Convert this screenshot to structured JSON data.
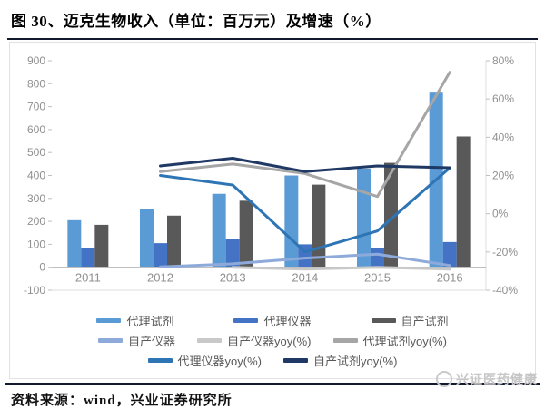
{
  "title": "图 30、迈克生物收入（单位：百万元）及增速（%）",
  "source_line": "资料来源：wind，兴业证券研究所",
  "watermark": "兴证医药健康",
  "colors": {
    "rule": "#141a2e",
    "axis_text": "#8f8f8f",
    "axis_line": "#bfbfbf",
    "plot_border": "#dcdcdc",
    "watermark_gray": "#c6c6c6"
  },
  "chart_data": {
    "type": "bar",
    "subtype": "bar+line combo, dual axis",
    "categories": [
      "2011",
      "2012",
      "2013",
      "2014",
      "2015",
      "2016"
    ],
    "left_axis": {
      "min": -100,
      "max": 900,
      "step": 100,
      "ticks": [
        900,
        800,
        700,
        600,
        500,
        400,
        300,
        200,
        100,
        0,
        -100
      ]
    },
    "right_axis": {
      "min": -40,
      "max": 80,
      "step": 20,
      "suffix": "%",
      "ticks": [
        80,
        60,
        40,
        20,
        0,
        -20,
        -40
      ]
    },
    "grid": "off",
    "legend_position": "bottom",
    "bar_series": [
      {
        "name": "代理试剂",
        "color": "#5B9BD5",
        "axis": "left",
        "values": [
          205,
          255,
          320,
          400,
          430,
          765
        ]
      },
      {
        "name": "代理仪器",
        "color": "#4472C4",
        "axis": "left",
        "values": [
          85,
          105,
          125,
          100,
          85,
          110
        ]
      },
      {
        "name": "自产试剂",
        "color": "#595959",
        "axis": "left",
        "values": [
          185,
          225,
          290,
          360,
          455,
          570
        ]
      }
    ],
    "line_series": [
      {
        "name": "自产仪器",
        "color": "#8EAADB",
        "axis": "left",
        "values": [
          null,
          2,
          15,
          40,
          57,
          8
        ]
      },
      {
        "name": "自产仪器yoy(%)",
        "color": "#C9C9C9",
        "axis": "right",
        "values": [
          null,
          null,
          -28,
          -29,
          -28,
          -29
        ]
      },
      {
        "name": "代理试剂yoy(%)",
        "color": "#A6A6A6",
        "axis": "right",
        "values": [
          null,
          22,
          26,
          21,
          9,
          74
        ]
      },
      {
        "name": "代理仪器yoy(%)",
        "color": "#2E75B6",
        "axis": "right",
        "values": [
          null,
          20,
          15,
          -20,
          -9,
          24
        ]
      },
      {
        "name": "自产试剂yoy(%)",
        "color": "#1F3864",
        "axis": "right",
        "values": [
          null,
          25,
          29,
          22,
          25,
          24
        ]
      }
    ],
    "legend_rows": [
      [
        "代理试剂",
        "代理仪器",
        "自产试剂"
      ],
      [
        "自产仪器",
        "自产仪器yoy(%)",
        "代理试剂yoy(%)"
      ],
      [
        "代理仪器yoy(%)",
        "自产试剂yoy(%)"
      ]
    ]
  }
}
